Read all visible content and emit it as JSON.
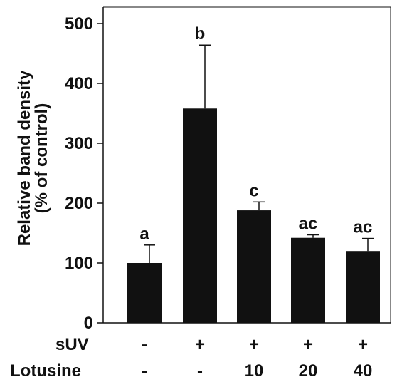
{
  "chart_data": {
    "type": "bar",
    "title": "",
    "ylabel_lines": [
      "Relative band density",
      "(% of control)"
    ],
    "xlabel": "",
    "ylim": [
      0,
      500
    ],
    "yticks": [
      0,
      100,
      200,
      300,
      400,
      500
    ],
    "grid": false,
    "legend": "none",
    "bar_color": "#111111",
    "bars": [
      {
        "value": 100,
        "error": 30,
        "significance": "a",
        "suv": "-",
        "lotusine": "-"
      },
      {
        "value": 358,
        "error": 106,
        "significance": "b",
        "suv": "+",
        "lotusine": "-"
      },
      {
        "value": 188,
        "error": 14,
        "significance": "c",
        "suv": "+",
        "lotusine": "10"
      },
      {
        "value": 142,
        "error": 5,
        "significance": "ac",
        "suv": "+",
        "lotusine": "20"
      },
      {
        "value": 120,
        "error": 21,
        "significance": "ac",
        "suv": "+",
        "lotusine": "40"
      }
    ],
    "row_labels": {
      "suv": "sUV",
      "lotusine": "Lotusine"
    }
  }
}
